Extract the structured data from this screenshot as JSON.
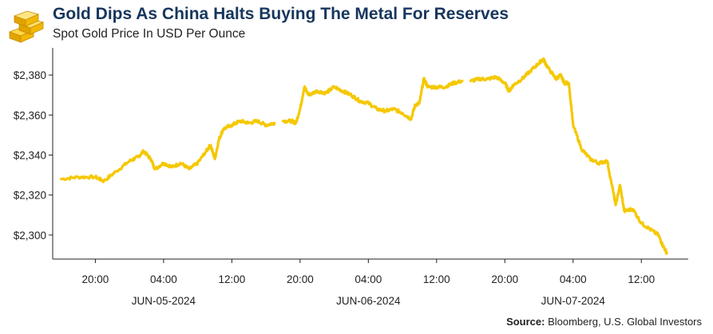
{
  "header": {
    "title": "Gold Dips As China Halts Buying The Metal For Reserves",
    "subtitle": "Spot Gold Price In USD Per Ounce",
    "logo_icon": "gold-bars-icon"
  },
  "source": {
    "label": "Source:",
    "text": " Bloomberg, U.S. Global Investors"
  },
  "colors": {
    "line": "#f5c800",
    "title": "#17365d",
    "axis": "#222222",
    "gold_logo": "#f2b807"
  },
  "chart_data": {
    "type": "line",
    "title": "Gold Dips As China Halts Buying The Metal For Reserves",
    "ylabel": "Spot Gold Price In USD Per Ounce",
    "xlabel": "",
    "ylim": [
      2288,
      2392
    ],
    "xlim": [
      "2024-06-04 15:00",
      "2024-06-07 17:30"
    ],
    "grid": false,
    "y_ticks": [
      2300,
      2320,
      2340,
      2360,
      2380
    ],
    "y_tick_labels": [
      "$2,300",
      "$2,320",
      "$2,340",
      "$2,360",
      "$2,380"
    ],
    "x_ticks": [
      "2024-06-04 20:00",
      "2024-06-05 04:00",
      "2024-06-05 12:00",
      "2024-06-05 20:00",
      "2024-06-06 04:00",
      "2024-06-06 12:00",
      "2024-06-06 20:00",
      "2024-06-07 04:00",
      "2024-06-07 12:00"
    ],
    "x_tick_labels": [
      "20:00",
      "04:00",
      "12:00",
      "20:00",
      "04:00",
      "12:00",
      "20:00",
      "04:00",
      "12:00"
    ],
    "x_date_labels": [
      {
        "label": "JUN-05-2024",
        "at": "2024-06-05 04:00"
      },
      {
        "label": "JUN-06-2024",
        "at": "2024-06-06 04:00"
      },
      {
        "label": "JUN-07-2024",
        "at": "2024-06-07 04:00"
      }
    ],
    "series": [
      {
        "segments": [
          [
            [
              "2024-06-04 16:00",
              2328
            ],
            [
              "2024-06-04 18:00",
              2329
            ],
            [
              "2024-06-04 20:00",
              2329
            ],
            [
              "2024-06-04 21:00",
              2327
            ],
            [
              "2024-06-04 22:30",
              2332
            ],
            [
              "2024-06-05 00:00",
              2337
            ],
            [
              "2024-06-05 01:00",
              2339
            ],
            [
              "2024-06-05 01:40",
              2342
            ],
            [
              "2024-06-05 02:30",
              2338
            ],
            [
              "2024-06-05 03:00",
              2333
            ],
            [
              "2024-06-05 04:00",
              2336
            ],
            [
              "2024-06-05 05:00",
              2334
            ],
            [
              "2024-06-05 06:00",
              2336
            ],
            [
              "2024-06-05 07:00",
              2333
            ],
            [
              "2024-06-05 08:00",
              2336
            ],
            [
              "2024-06-05 09:00",
              2342
            ],
            [
              "2024-06-05 09:30",
              2345
            ],
            [
              "2024-06-05 10:00",
              2338
            ],
            [
              "2024-06-05 10:30",
              2348
            ],
            [
              "2024-06-05 11:00",
              2353
            ],
            [
              "2024-06-05 12:00",
              2355
            ],
            [
              "2024-06-05 13:00",
              2357
            ],
            [
              "2024-06-05 14:00",
              2356
            ],
            [
              "2024-06-05 15:00",
              2357
            ],
            [
              "2024-06-05 16:00",
              2355
            ],
            [
              "2024-06-05 17:00",
              2356
            ]
          ],
          [
            [
              "2024-06-05 18:00",
              2357
            ],
            [
              "2024-06-05 19:00",
              2357
            ],
            [
              "2024-06-05 19:30",
              2356
            ],
            [
              "2024-06-05 20:00",
              2363
            ],
            [
              "2024-06-05 20:30",
              2374
            ],
            [
              "2024-06-05 21:00",
              2370
            ],
            [
              "2024-06-05 22:00",
              2372
            ],
            [
              "2024-06-05 23:00",
              2371
            ],
            [
              "2024-06-06 00:00",
              2374
            ],
            [
              "2024-06-06 01:00",
              2372
            ],
            [
              "2024-06-06 02:00",
              2370
            ],
            [
              "2024-06-06 03:00",
              2367
            ],
            [
              "2024-06-06 04:00",
              2366
            ],
            [
              "2024-06-06 05:00",
              2363
            ],
            [
              "2024-06-06 06:00",
              2362
            ],
            [
              "2024-06-06 07:00",
              2363
            ],
            [
              "2024-06-06 08:00",
              2361
            ],
            [
              "2024-06-06 09:00",
              2358
            ],
            [
              "2024-06-06 09:30",
              2365
            ],
            [
              "2024-06-06 10:00",
              2366
            ],
            [
              "2024-06-06 10:30",
              2378
            ],
            [
              "2024-06-06 11:00",
              2374
            ],
            [
              "2024-06-06 12:00",
              2374
            ],
            [
              "2024-06-06 13:00",
              2374
            ],
            [
              "2024-06-06 14:00",
              2376
            ],
            [
              "2024-06-06 15:00",
              2377
            ]
          ],
          [
            [
              "2024-06-06 16:00",
              2377
            ],
            [
              "2024-06-06 17:00",
              2378
            ],
            [
              "2024-06-06 18:00",
              2378
            ],
            [
              "2024-06-06 19:00",
              2379
            ],
            [
              "2024-06-06 20:00",
              2376
            ],
            [
              "2024-06-06 20:30",
              2372
            ],
            [
              "2024-06-06 21:00",
              2375
            ],
            [
              "2024-06-06 22:00",
              2378
            ],
            [
              "2024-06-06 23:00",
              2382
            ],
            [
              "2024-06-07 00:00",
              2386
            ],
            [
              "2024-06-07 00:30",
              2388
            ],
            [
              "2024-06-07 01:00",
              2384
            ],
            [
              "2024-06-07 02:00",
              2378
            ],
            [
              "2024-06-07 02:30",
              2380
            ],
            [
              "2024-06-07 03:00",
              2376
            ],
            [
              "2024-06-07 03:30",
              2376
            ],
            [
              "2024-06-07 04:00",
              2355
            ],
            [
              "2024-06-07 05:00",
              2343
            ],
            [
              "2024-06-07 06:00",
              2338
            ],
            [
              "2024-06-07 07:00",
              2336
            ],
            [
              "2024-06-07 08:00",
              2337
            ],
            [
              "2024-06-07 09:00",
              2315
            ],
            [
              "2024-06-07 09:30",
              2325
            ],
            [
              "2024-06-07 10:00",
              2312
            ],
            [
              "2024-06-07 11:00",
              2313
            ],
            [
              "2024-06-07 12:00",
              2306
            ],
            [
              "2024-06-07 13:00",
              2303
            ],
            [
              "2024-06-07 14:00",
              2300
            ],
            [
              "2024-06-07 14:30",
              2295
            ],
            [
              "2024-06-07 15:00",
              2291
            ]
          ]
        ]
      }
    ]
  }
}
